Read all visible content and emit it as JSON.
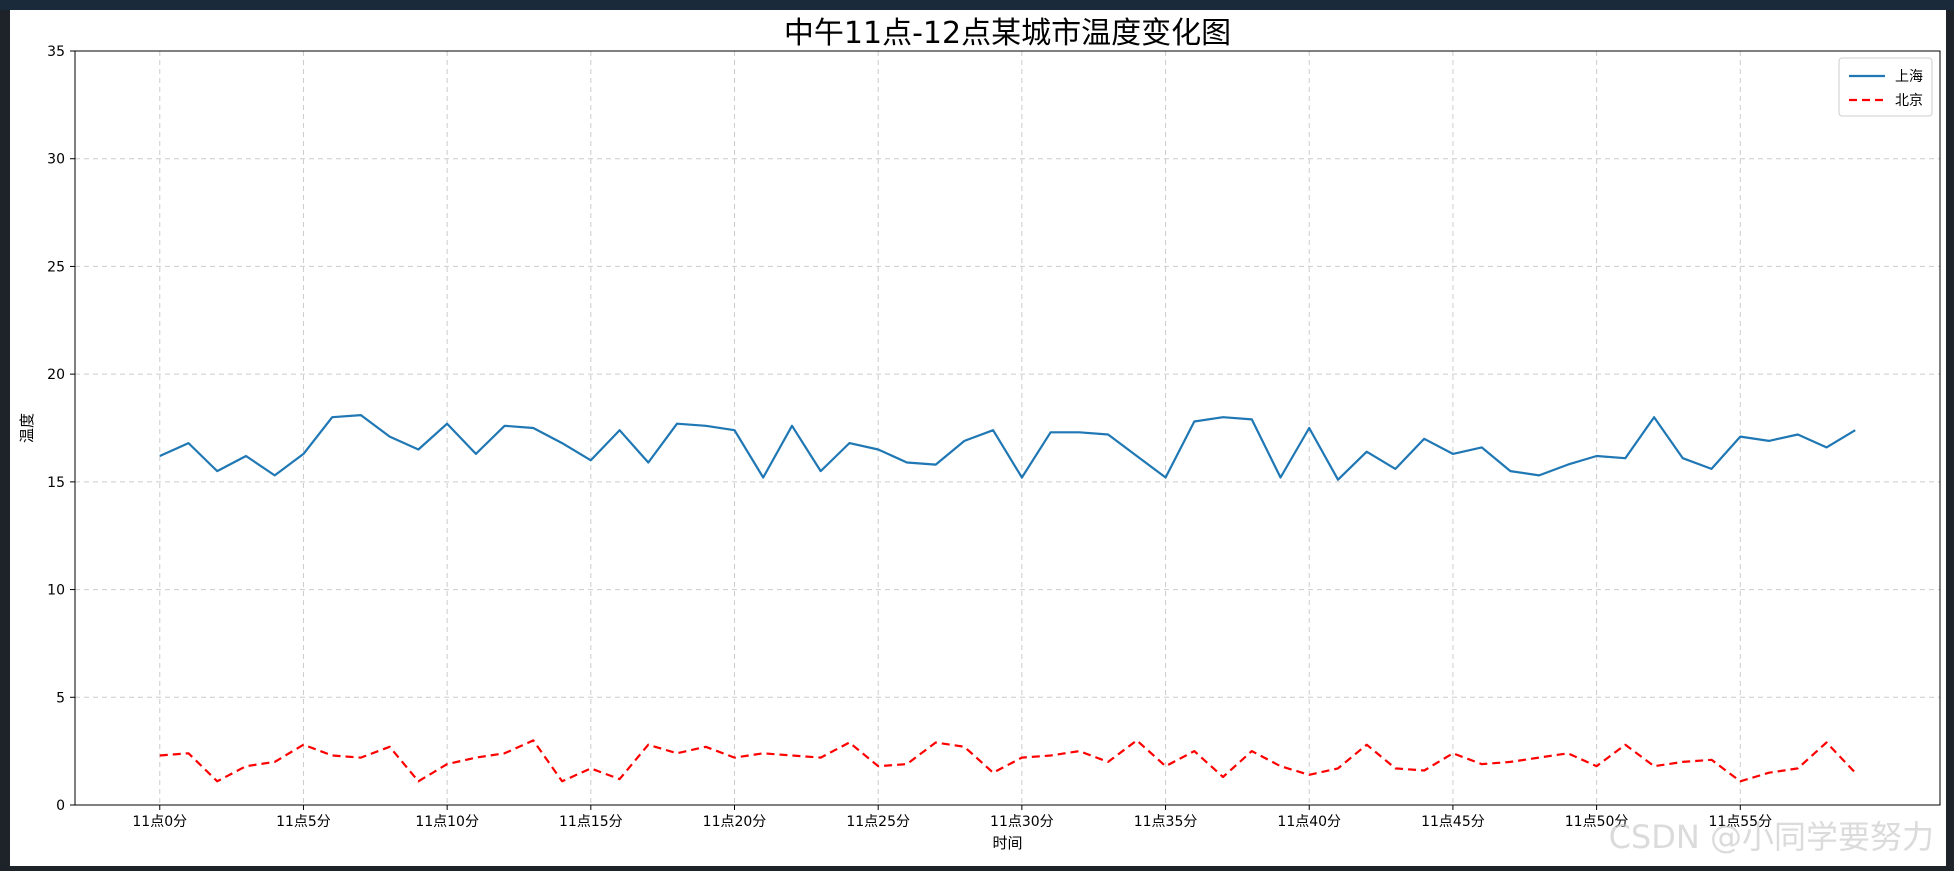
{
  "watermark": "CSDN @小同学要努力",
  "chart_data": {
    "type": "line",
    "title": "中午11点-12点某城市温度变化图",
    "xlabel": "时间",
    "ylabel": "温度",
    "x": [
      0,
      1,
      2,
      3,
      4,
      5,
      6,
      7,
      8,
      9,
      10,
      11,
      12,
      13,
      14,
      15,
      16,
      17,
      18,
      19,
      20,
      21,
      22,
      23,
      24,
      25,
      26,
      27,
      28,
      29,
      30,
      31,
      32,
      33,
      34,
      35,
      36,
      37,
      38,
      39,
      40,
      41,
      42,
      43,
      44,
      45,
      46,
      47,
      48,
      49,
      50,
      51,
      52,
      53,
      54,
      55,
      56,
      57,
      58,
      59
    ],
    "xlim": [
      -2.95,
      61.95
    ],
    "xticks": [
      0,
      5,
      10,
      15,
      20,
      25,
      30,
      35,
      40,
      45,
      50,
      55
    ],
    "xtick_labels": [
      "11点0分",
      "11点5分",
      "11点10分",
      "11点15分",
      "11点20分",
      "11点25分",
      "11点30分",
      "11点35分",
      "11点40分",
      "11点45分",
      "11点50分",
      "11点55分"
    ],
    "ylim": [
      0,
      35
    ],
    "yticks": [
      0,
      5,
      10,
      15,
      20,
      25,
      30,
      35
    ],
    "ytick_labels": [
      "0",
      "5",
      "10",
      "15",
      "20",
      "25",
      "30",
      "35"
    ],
    "grid": true,
    "legend_position": "top-right",
    "series": [
      {
        "name": "上海",
        "color": "#1f77b4",
        "linestyle": "solid",
        "values": [
          16.2,
          16.8,
          15.5,
          16.2,
          15.3,
          16.3,
          18.0,
          18.1,
          17.1,
          16.5,
          17.7,
          16.3,
          17.6,
          17.5,
          16.8,
          16.0,
          17.4,
          15.9,
          17.7,
          17.6,
          17.4,
          15.2,
          17.6,
          15.5,
          16.8,
          16.5,
          15.9,
          15.8,
          16.9,
          17.4,
          15.2,
          17.3,
          17.3,
          17.2,
          16.2,
          15.2,
          17.8,
          18.0,
          17.9,
          15.2,
          17.5,
          15.1,
          16.4,
          15.6,
          17.0,
          16.3,
          16.6,
          15.5,
          15.3,
          15.8,
          16.2,
          16.1,
          18.0,
          16.1,
          15.6,
          17.1,
          16.9,
          17.2,
          16.6,
          17.4
        ]
      },
      {
        "name": "北京",
        "color": "#ff0000",
        "linestyle": "dashed",
        "values": [
          2.3,
          2.4,
          1.1,
          1.8,
          2.0,
          2.8,
          2.3,
          2.2,
          2.7,
          1.1,
          1.9,
          2.2,
          2.4,
          3.0,
          1.1,
          1.7,
          1.2,
          2.8,
          2.4,
          2.7,
          2.2,
          2.4,
          2.3,
          2.2,
          2.9,
          1.8,
          1.9,
          2.9,
          2.7,
          1.5,
          2.2,
          2.3,
          2.5,
          2.0,
          3.0,
          1.8,
          2.5,
          1.3,
          2.5,
          1.8,
          1.4,
          1.7,
          2.8,
          1.7,
          1.6,
          2.4,
          1.9,
          2.0,
          2.2,
          2.4,
          1.8,
          2.8,
          1.8,
          2.0,
          2.1,
          1.1,
          1.5,
          1.7,
          2.9,
          1.5
        ]
      }
    ]
  }
}
